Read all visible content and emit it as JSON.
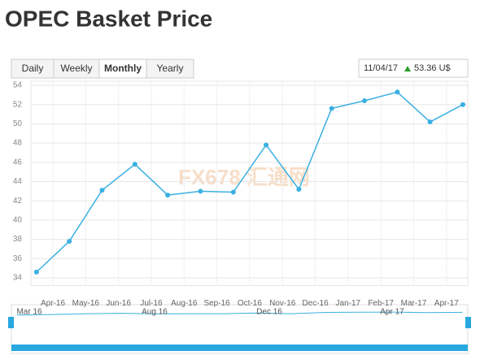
{
  "title": "OPEC Basket Price",
  "range_buttons": [
    "Daily",
    "Weekly",
    "Monthly",
    "Yearly"
  ],
  "active_button": 2,
  "info": {
    "date": "11/04/17",
    "price": "53.36 U$"
  },
  "watermark": "FX678 汇通网",
  "navigator_labels": [
    "Mar 16",
    "Aug 16",
    "Dec 16",
    "Apr 17"
  ],
  "chart_data": {
    "type": "line",
    "x": [
      0,
      1,
      2,
      3,
      4,
      5,
      6,
      7,
      8,
      9,
      10,
      11,
      12,
      13
    ],
    "values": [
      34.6,
      37.8,
      43.1,
      45.8,
      42.6,
      43.0,
      42.9,
      47.8,
      43.2,
      51.6,
      52.4,
      53.3,
      50.2,
      52.0
    ],
    "color": "#3ab0e2",
    "xlim": [
      -0.17,
      13.15
    ],
    "xticks": [
      {
        "value": 0.5,
        "label": "Apr-16"
      },
      {
        "value": 1.5,
        "label": "May-16"
      },
      {
        "value": 2.5,
        "label": "Jun-16"
      },
      {
        "value": 3.5,
        "label": "Jul-16"
      },
      {
        "value": 4.5,
        "label": "Aug-16"
      },
      {
        "value": 5.5,
        "label": "Sep-16"
      },
      {
        "value": 6.5,
        "label": "Oct-16"
      },
      {
        "value": 7.5,
        "label": "Nov-16"
      },
      {
        "value": 8.5,
        "label": "Dec-16"
      },
      {
        "value": 9.5,
        "label": "Jan-17"
      },
      {
        "value": 10.5,
        "label": "Feb-17"
      },
      {
        "value": 11.5,
        "label": "Mar-17"
      },
      {
        "value": 12.5,
        "label": "Apr-17"
      }
    ],
    "ylim": [
      33.2,
      54
    ],
    "yticks": [
      34,
      36,
      38,
      40,
      42,
      44,
      46,
      48,
      50,
      52,
      54
    ],
    "grid": true
  }
}
